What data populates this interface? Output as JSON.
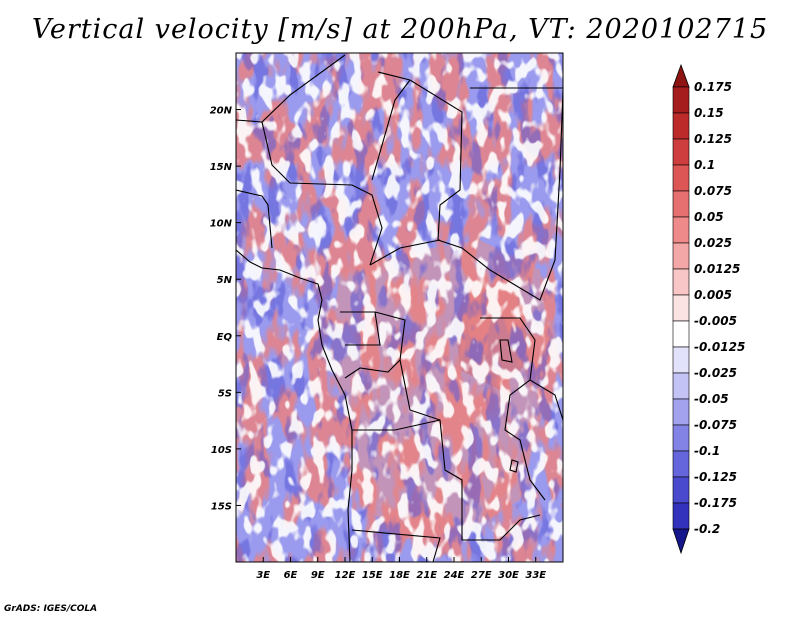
{
  "title": "Vertical velocity [m/s] at 200hPa, VT: 2020102715",
  "credit": "GrADS: IGES/COLA",
  "map": {
    "lon_range": [
      0,
      36
    ],
    "lat_range": [
      -20,
      25
    ],
    "lat_ticks": [
      {
        "value": 20,
        "label": "20N"
      },
      {
        "value": 15,
        "label": "15N"
      },
      {
        "value": 10,
        "label": "10N"
      },
      {
        "value": 5,
        "label": "5N"
      },
      {
        "value": 0,
        "label": "EQ"
      },
      {
        "value": -5,
        "label": "5S"
      },
      {
        "value": -10,
        "label": "10S"
      },
      {
        "value": -15,
        "label": "15S"
      }
    ],
    "lon_ticks": [
      {
        "value": 3,
        "label": "3E"
      },
      {
        "value": 6,
        "label": "6E"
      },
      {
        "value": 9,
        "label": "9E"
      },
      {
        "value": 12,
        "label": "12E"
      },
      {
        "value": 15,
        "label": "15E"
      },
      {
        "value": 18,
        "label": "18E"
      },
      {
        "value": 21,
        "label": "21E"
      },
      {
        "value": 24,
        "label": "24E"
      },
      {
        "value": 27,
        "label": "27E"
      },
      {
        "value": 30,
        "label": "30E"
      },
      {
        "value": 33,
        "label": "33E"
      }
    ]
  },
  "colorbar": {
    "levels": [
      {
        "label": "0.175",
        "color": "#a51d1d"
      },
      {
        "label": "0.15",
        "color": "#bd2a2a"
      },
      {
        "label": "0.125",
        "color": "#cf3e3e"
      },
      {
        "label": "0.1",
        "color": "#dc5656"
      },
      {
        "label": "0.075",
        "color": "#e66f6f"
      },
      {
        "label": "0.05",
        "color": "#ee8a8a"
      },
      {
        "label": "0.025",
        "color": "#f4a7a7"
      },
      {
        "label": "0.0125",
        "color": "#f8c6c6"
      },
      {
        "label": "0.005",
        "color": "#fce3e3"
      },
      {
        "label": "-0.005",
        "color": "#ffffff"
      },
      {
        "label": "-0.0125",
        "color": "#e2e2fb"
      },
      {
        "label": "-0.025",
        "color": "#c3c3f6"
      },
      {
        "label": "-0.05",
        "color": "#a2a2ef"
      },
      {
        "label": "-0.075",
        "color": "#8383e6"
      },
      {
        "label": "-0.1",
        "color": "#6565dc"
      },
      {
        "label": "-0.125",
        "color": "#4a4acf"
      },
      {
        "label": "-0.175",
        "color": "#3232bd"
      },
      {
        "label": "-0.2",
        "color": "#2020a3"
      }
    ],
    "top_arrow_color": "#8e1414",
    "bottom_arrow_color": "#15158c"
  }
}
